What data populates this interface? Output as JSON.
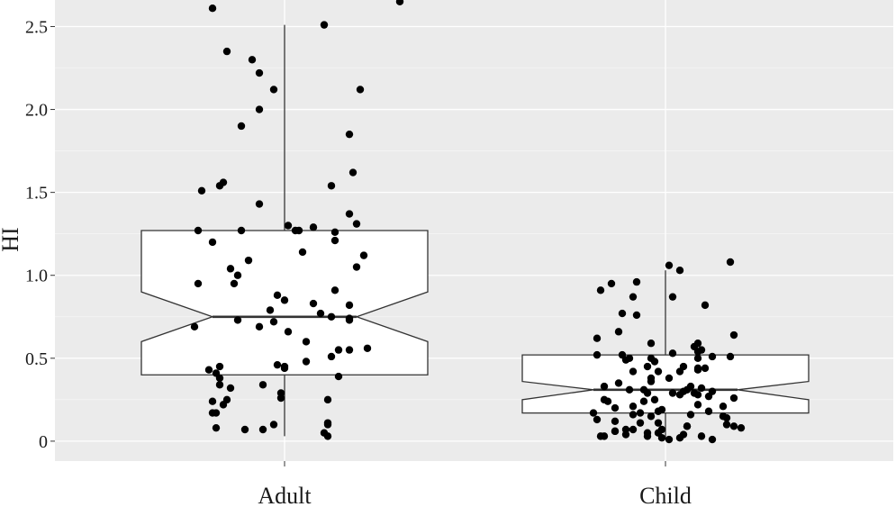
{
  "chart_data": {
    "type": "boxplot",
    "notched": true,
    "title": "",
    "xlabel": "",
    "ylabel": "HI",
    "ylim": [
      -0.12,
      2.66
    ],
    "yticks": [
      0,
      0.5,
      1.0,
      1.5,
      2.0,
      2.5
    ],
    "ytick_labels": [
      "0",
      "0.5",
      "1.0",
      "1.5",
      "2.0",
      "2.5"
    ],
    "categories": [
      "Adult",
      "Child"
    ],
    "colors": {
      "panel": "#ebebeb",
      "grid": "#ffffff",
      "box_fill": "#ffffff",
      "box_line": "#333333",
      "point": "#000000",
      "axis_text": "#1a1a1a"
    },
    "boxes": [
      {
        "category": "Adult",
        "q1": 0.4,
        "median": 0.75,
        "q3": 1.27,
        "notch_low": 0.6,
        "notch_high": 0.9,
        "whisker_low": 0.03,
        "whisker_high": 2.51
      },
      {
        "category": "Child",
        "q1": 0.17,
        "median": 0.31,
        "q3": 0.52,
        "notch_low": 0.25,
        "notch_high": 0.36,
        "whisker_low": 0.01,
        "whisker_high": 1.03
      }
    ],
    "points": [
      {
        "category": "Adult",
        "jitter": [
          -0.2,
          0.32,
          0.11,
          -0.16,
          -0.09,
          -0.07,
          -0.03,
          0.21,
          -0.07,
          -0.12,
          0.18,
          0.19,
          -0.17,
          0.13,
          -0.18,
          -0.23,
          -0.07,
          0.18,
          0.2,
          0.01,
          0.08,
          0.03,
          0.04,
          -0.24,
          -0.12,
          0.14,
          0.14,
          -0.2,
          0.05,
          0.22,
          -0.1,
          0.2,
          -0.15,
          -0.13,
          -0.24,
          -0.14,
          0.14,
          -0.02,
          0.0,
          0.08,
          0.18,
          -0.04,
          0.1,
          0.13,
          0.18,
          -0.13,
          0.18,
          -0.03,
          -0.07,
          -0.25,
          0.01,
          0.06,
          0.23,
          0.18,
          0.15,
          0.13,
          0.06,
          -0.02,
          0.0,
          0.0,
          -0.18,
          -0.21,
          -0.19,
          0.15,
          -0.18,
          -0.06,
          -0.18,
          -0.15,
          -0.01,
          -0.01,
          -0.16,
          0.12,
          -0.2,
          -0.17,
          -0.19,
          -0.2,
          0.12,
          0.12,
          -0.03,
          -0.19,
          -0.06,
          -0.11,
          0.11,
          0.12
        ],
        "values": [
          2.61,
          2.65,
          2.51,
          2.35,
          2.3,
          2.22,
          2.12,
          2.12,
          2.0,
          1.9,
          1.85,
          1.62,
          1.56,
          1.54,
          1.54,
          1.51,
          1.43,
          1.37,
          1.31,
          1.3,
          1.29,
          1.27,
          1.27,
          1.27,
          1.27,
          1.26,
          1.21,
          1.2,
          1.14,
          1.12,
          1.09,
          1.05,
          1.04,
          1.0,
          0.95,
          0.95,
          0.91,
          0.88,
          0.85,
          0.83,
          0.82,
          0.79,
          0.77,
          0.75,
          0.74,
          0.73,
          0.73,
          0.72,
          0.69,
          0.69,
          0.66,
          0.6,
          0.56,
          0.55,
          0.55,
          0.51,
          0.48,
          0.46,
          0.45,
          0.44,
          0.45,
          0.43,
          0.41,
          0.39,
          0.38,
          0.34,
          0.34,
          0.32,
          0.29,
          0.26,
          0.25,
          0.25,
          0.24,
          0.22,
          0.17,
          0.17,
          0.11,
          0.1,
          0.1,
          0.08,
          0.07,
          0.07,
          0.05,
          0.03
        ]
      },
      {
        "category": "Child",
        "jitter": [
          0.18,
          0.01,
          0.04,
          -0.08,
          -0.15,
          -0.18,
          -0.09,
          0.02,
          0.11,
          -0.12,
          -0.08,
          -0.13,
          0.19,
          -0.19,
          -0.04,
          0.09,
          0.08,
          0.1,
          0.09,
          0.02,
          -0.19,
          -0.12,
          0.18,
          0.13,
          -0.04,
          0.09,
          -0.1,
          -0.11,
          -0.03,
          -0.05,
          0.05,
          0.11,
          0.09,
          0.09,
          0.04,
          -0.02,
          -0.09,
          -0.04,
          0.01,
          -0.04,
          -0.13,
          -0.17,
          0.07,
          0.1,
          -0.06,
          -0.1,
          0.06,
          0.13,
          0.05,
          0.08,
          0.02,
          -0.05,
          0.04,
          0.09,
          0.12,
          0.19,
          -0.17,
          -0.03,
          -0.06,
          -0.16,
          0.09,
          -0.09,
          0.16,
          -0.14,
          -0.01,
          -0.02,
          0.12,
          -0.07,
          -0.2,
          0.07,
          -0.09,
          -0.04,
          0.16,
          0.17,
          -0.19,
          -0.14,
          -0.07,
          -0.02,
          0.17,
          0.06,
          0.06,
          0.19,
          0.21,
          -0.01,
          -0.11,
          -0.09,
          -0.14,
          -0.14,
          -0.05,
          -0.02,
          -0.11,
          0.05,
          0.1,
          -0.17,
          -0.18,
          -0.05,
          -0.01,
          0.04,
          0.13,
          0.01
        ],
        "values": [
          1.08,
          1.06,
          1.03,
          0.96,
          0.95,
          0.91,
          0.87,
          0.87,
          0.82,
          0.77,
          0.76,
          0.66,
          0.64,
          0.62,
          0.59,
          0.59,
          0.57,
          0.55,
          0.54,
          0.53,
          0.52,
          0.52,
          0.51,
          0.51,
          0.5,
          0.5,
          0.5,
          0.49,
          0.48,
          0.45,
          0.45,
          0.44,
          0.44,
          0.43,
          0.42,
          0.42,
          0.42,
          0.38,
          0.38,
          0.36,
          0.35,
          0.33,
          0.33,
          0.32,
          0.31,
          0.31,
          0.31,
          0.3,
          0.3,
          0.29,
          0.29,
          0.29,
          0.28,
          0.28,
          0.27,
          0.26,
          0.25,
          0.25,
          0.24,
          0.24,
          0.22,
          0.21,
          0.21,
          0.2,
          0.19,
          0.18,
          0.18,
          0.17,
          0.17,
          0.16,
          0.16,
          0.15,
          0.15,
          0.14,
          0.13,
          0.12,
          0.11,
          0.11,
          0.1,
          0.09,
          0.09,
          0.09,
          0.08,
          0.07,
          0.07,
          0.07,
          0.06,
          0.06,
          0.05,
          0.05,
          0.04,
          0.04,
          0.03,
          0.03,
          0.03,
          0.03,
          0.02,
          0.02,
          0.01,
          0.01
        ]
      }
    ]
  }
}
